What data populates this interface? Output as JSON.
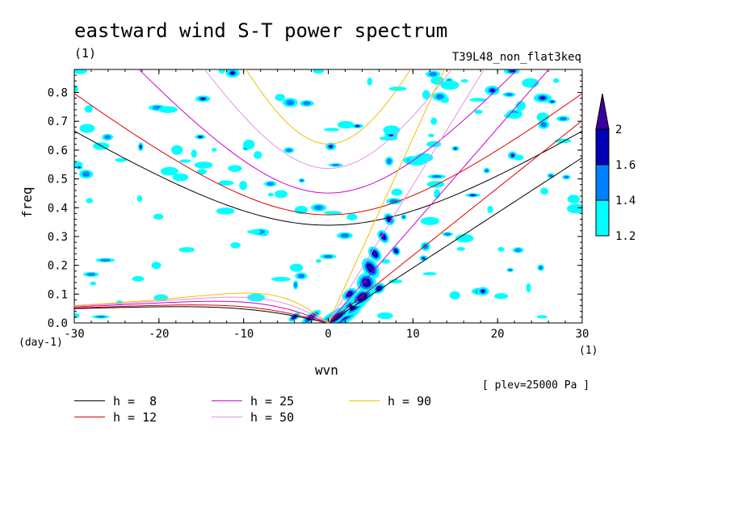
{
  "chart_data": {
    "type": "heatmap",
    "title": "eastward wind S-T power spectrum",
    "title_unit": "(1)",
    "experiment": "T39L48_non_flat3keq",
    "xlabel": "wvn",
    "ylabel": "freq",
    "x_unit": "(1)",
    "y_unit": "(day-1)",
    "xlim": [
      -30,
      30
    ],
    "ylim": [
      0,
      0.88
    ],
    "x_ticks": [
      -30,
      -20,
      -10,
      0,
      10,
      20,
      30
    ],
    "y_ticks": [
      0.0,
      0.1,
      0.2,
      0.3,
      0.4,
      0.5,
      0.6,
      0.7,
      0.8
    ],
    "plev_label": "[ plev=25000 Pa ]",
    "colorbar": {
      "levels": [
        1.2,
        1.4,
        1.6,
        2
      ],
      "colors": [
        "#00ffff",
        "#0080ff",
        "#0000b4",
        "#3c00a0"
      ],
      "labels": [
        "1.2",
        "1.4",
        "1.6",
        "2"
      ]
    },
    "dispersion_curves": [
      {
        "name": "h =  8",
        "h": 8,
        "color": "#000000"
      },
      {
        "name": "h = 12",
        "h": 12,
        "color": "#e00000"
      },
      {
        "name": "h = 25",
        "h": 25,
        "color": "#d000d0"
      },
      {
        "name": "h = 50",
        "h": 50,
        "color": "#e890e8"
      },
      {
        "name": "h = 90",
        "h": 90,
        "color": "#f0c000"
      }
    ]
  }
}
